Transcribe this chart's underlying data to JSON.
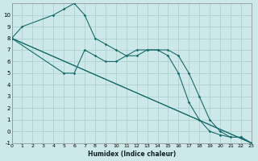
{
  "xlabel": "Humidex (Indice chaleur)",
  "background_color": "#cce8e8",
  "grid_color": "#aacccc",
  "line_color": "#1a6b6b",
  "xlim": [
    0,
    23
  ],
  "ylim": [
    -1,
    11
  ],
  "xticks": [
    0,
    1,
    2,
    3,
    4,
    5,
    6,
    7,
    8,
    9,
    10,
    11,
    12,
    13,
    14,
    15,
    16,
    17,
    18,
    19,
    20,
    21,
    22,
    23
  ],
  "yticks": [
    -1,
    0,
    1,
    2,
    3,
    4,
    5,
    6,
    7,
    8,
    9,
    10
  ],
  "series": [
    {
      "x": [
        0,
        1,
        4,
        5,
        6,
        7,
        8,
        9,
        10,
        11,
        12,
        13,
        14,
        15,
        16,
        17,
        18,
        19,
        20,
        21,
        22,
        23
      ],
      "y": [
        8,
        9,
        10,
        10.5,
        11,
        10,
        8,
        7.5,
        7,
        6.5,
        6.5,
        7,
        7,
        7,
        6.5,
        5,
        3,
        1,
        0,
        -0.5,
        -0.5,
        -1
      ],
      "markers": true
    },
    {
      "x": [
        0,
        5,
        6,
        7,
        8,
        9,
        10,
        11,
        12,
        13,
        14,
        15,
        16,
        17,
        18,
        19,
        20,
        21,
        22,
        23
      ],
      "y": [
        8,
        5,
        5,
        7,
        6.5,
        6,
        6,
        6.5,
        7,
        7,
        7,
        6.5,
        5,
        2.5,
        1,
        0,
        -0.3,
        -0.5,
        -0.5,
        -1
      ],
      "markers": true
    },
    {
      "x": [
        0,
        23
      ],
      "y": [
        8,
        -1
      ],
      "markers": false
    },
    {
      "x": [
        0,
        23
      ],
      "y": [
        8,
        -1
      ],
      "markers": false
    }
  ]
}
